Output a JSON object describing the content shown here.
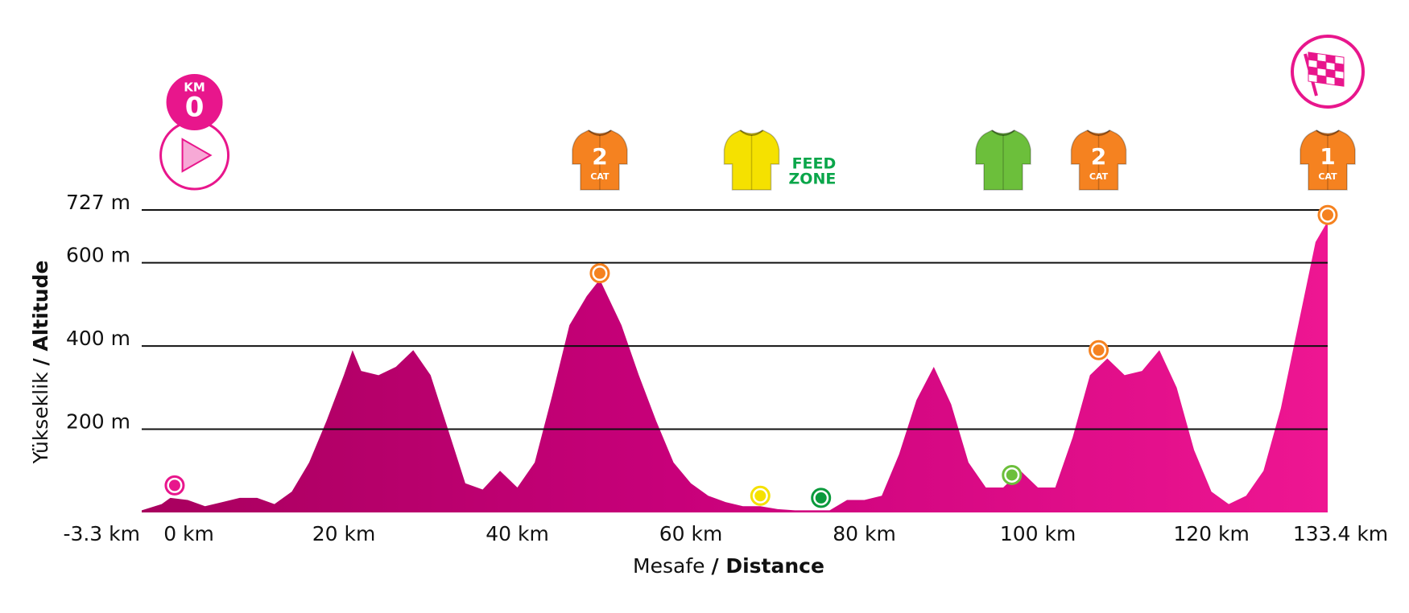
{
  "chart_data": {
    "type": "area",
    "x_label": "Mesafe",
    "x_label_bold": "/ Distance",
    "y_label": "Yükseklik",
    "y_label_bold": "/ Altitude",
    "x": [
      -3.3,
      -1,
      0,
      2,
      4,
      6,
      8,
      10,
      12,
      14,
      16,
      18,
      20,
      21,
      22,
      24,
      26,
      28,
      30,
      32,
      34,
      36,
      38,
      40,
      42,
      44,
      46,
      48,
      49.5,
      52,
      54,
      56,
      58,
      60,
      62,
      64,
      66,
      68,
      70,
      72,
      74,
      76,
      78,
      80,
      82,
      84,
      86,
      88,
      90,
      92,
      94,
      96,
      98,
      100,
      102,
      104,
      106,
      108,
      110,
      112,
      114,
      116,
      118,
      120,
      122,
      124,
      126,
      128,
      130,
      132,
      133.4
    ],
    "values": [
      5,
      20,
      35,
      30,
      15,
      25,
      35,
      35,
      20,
      50,
      120,
      220,
      330,
      390,
      340,
      330,
      350,
      390,
      330,
      200,
      70,
      55,
      100,
      60,
      120,
      280,
      450,
      520,
      560,
      450,
      330,
      220,
      120,
      70,
      40,
      25,
      15,
      15,
      8,
      5,
      5,
      5,
      30,
      30,
      40,
      140,
      270,
      350,
      260,
      120,
      60,
      60,
      100,
      60,
      60,
      180,
      330,
      370,
      330,
      340,
      390,
      300,
      150,
      50,
      20,
      40,
      100,
      250,
      450,
      650,
      700
    ],
    "color": "#e8168c",
    "xlim": [
      -3.3,
      133.4
    ],
    "ylim": [
      0,
      727
    ],
    "xticks": [
      {
        "value": -3.3,
        "label": "-3.3 km"
      },
      {
        "value": 0,
        "label": "0 km"
      },
      {
        "value": 20,
        "label": "20 km"
      },
      {
        "value": 40,
        "label": "40 km"
      },
      {
        "value": 60,
        "label": "60 km"
      },
      {
        "value": 80,
        "label": "80 km"
      },
      {
        "value": 100,
        "label": "100 km"
      },
      {
        "value": 120,
        "label": "120 km"
      },
      {
        "value": 133.4,
        "label": "133.4 km"
      }
    ],
    "yticks": [
      {
        "value": 200,
        "label": "200 m"
      },
      {
        "value": 400,
        "label": "400 m"
      },
      {
        "value": 600,
        "label": "600 m"
      },
      {
        "value": 727,
        "label": "727 m"
      }
    ],
    "grid": true,
    "points": [
      {
        "x": 0.5,
        "y": 65,
        "color": "#e8168c"
      },
      {
        "x": 49.5,
        "y": 575,
        "color": "#f58220"
      },
      {
        "x": 68,
        "y": 40,
        "color": "#f5e100"
      },
      {
        "x": 75,
        "y": 35,
        "color": "#0a9a3c"
      },
      {
        "x": 97,
        "y": 90,
        "color": "#6cbf3b"
      },
      {
        "x": 107,
        "y": 390,
        "color": "#f58220"
      },
      {
        "x": 133.4,
        "y": 715,
        "color": "#f58220"
      }
    ],
    "start": {
      "x": 0,
      "top": "KM",
      "num": "0"
    },
    "finish": {
      "x": 133.4
    },
    "jerseys": [
      {
        "x": 49.5,
        "num": "2",
        "sub": "CAT",
        "color": "#f58220"
      },
      {
        "x": 67,
        "color": "#f5e100"
      },
      {
        "x": 96,
        "color": "#6cbf3b"
      },
      {
        "x": 107,
        "num": "2",
        "sub": "CAT",
        "color": "#f58220"
      },
      {
        "x": 133.4,
        "num": "1",
        "sub": "CAT",
        "color": "#f58220"
      }
    ],
    "feed_zone": {
      "x": 74,
      "line1": "FEED",
      "line2": "ZONE"
    }
  }
}
